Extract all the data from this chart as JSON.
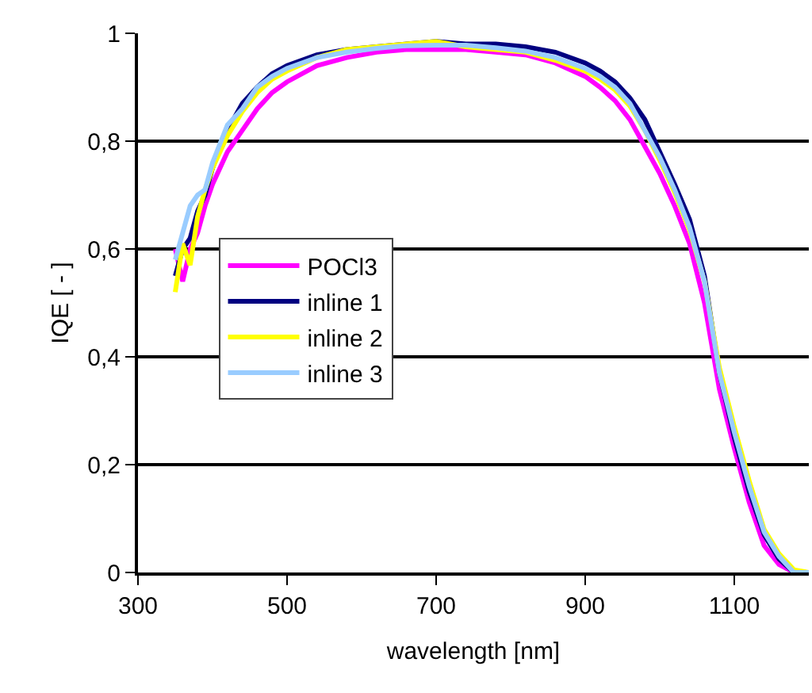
{
  "chart_data": {
    "type": "line",
    "xlabel": "wavelength [nm]",
    "ylabel": "IQE [ - ]",
    "x": [
      350,
      360,
      370,
      380,
      390,
      400,
      420,
      440,
      460,
      480,
      500,
      540,
      580,
      620,
      660,
      700,
      740,
      780,
      820,
      860,
      900,
      920,
      940,
      960,
      980,
      1000,
      1020,
      1040,
      1060,
      1080,
      1100,
      1120,
      1140,
      1160,
      1180,
      1200
    ],
    "series": [
      {
        "name": "POCl3",
        "color": "#ff00ff",
        "values": [
          0.6,
          0.54,
          0.6,
          0.63,
          0.68,
          0.72,
          0.78,
          0.82,
          0.86,
          0.89,
          0.91,
          0.94,
          0.955,
          0.965,
          0.97,
          0.97,
          0.97,
          0.965,
          0.96,
          0.945,
          0.92,
          0.9,
          0.875,
          0.84,
          0.79,
          0.74,
          0.68,
          0.61,
          0.5,
          0.34,
          0.23,
          0.13,
          0.05,
          0.015,
          0,
          0
        ]
      },
      {
        "name": "inline 1",
        "color": "#000080",
        "values": [
          0.55,
          0.6,
          0.62,
          0.67,
          0.7,
          0.75,
          0.82,
          0.87,
          0.9,
          0.925,
          0.94,
          0.96,
          0.97,
          0.975,
          0.98,
          0.985,
          0.98,
          0.98,
          0.975,
          0.965,
          0.945,
          0.93,
          0.91,
          0.88,
          0.84,
          0.78,
          0.72,
          0.655,
          0.55,
          0.37,
          0.25,
          0.15,
          0.07,
          0.025,
          0,
          0
        ]
      },
      {
        "name": "inline 2",
        "color": "#ffff00",
        "values": [
          0.52,
          0.61,
          0.57,
          0.66,
          0.71,
          0.75,
          0.81,
          0.855,
          0.89,
          0.915,
          0.93,
          0.955,
          0.97,
          0.975,
          0.98,
          0.985,
          0.975,
          0.97,
          0.965,
          0.95,
          0.93,
          0.915,
          0.895,
          0.865,
          0.82,
          0.765,
          0.705,
          0.635,
          0.54,
          0.38,
          0.27,
          0.17,
          0.08,
          0.035,
          0.005,
          0
        ]
      },
      {
        "name": "inline 3",
        "color": "#99ccff",
        "values": [
          0.58,
          0.63,
          0.68,
          0.7,
          0.71,
          0.76,
          0.83,
          0.86,
          0.9,
          0.92,
          0.935,
          0.955,
          0.965,
          0.972,
          0.977,
          0.978,
          0.978,
          0.973,
          0.967,
          0.955,
          0.935,
          0.92,
          0.9,
          0.87,
          0.82,
          0.77,
          0.71,
          0.64,
          0.54,
          0.37,
          0.26,
          0.16,
          0.075,
          0.03,
          0,
          0
        ]
      }
    ],
    "xlim": [
      300,
      1200
    ],
    "xticks": [
      300,
      500,
      700,
      900,
      1100
    ],
    "ylim": [
      0,
      1
    ],
    "yticks": [
      0,
      {
        "value": 0.2,
        "label": "0,2"
      },
      {
        "value": 0.4,
        "label": "0,4"
      },
      {
        "value": 0.6,
        "label": "0,6"
      },
      {
        "value": 0.8,
        "label": "0,8"
      },
      1
    ],
    "grid": "y",
    "legend": "left",
    "marker": "none",
    "line_style": "solid"
  }
}
